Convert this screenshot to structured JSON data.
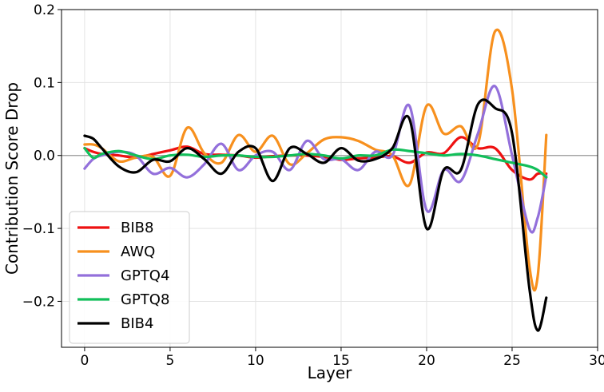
{
  "chart_data": {
    "type": "line",
    "xlabel": "Layer",
    "ylabel": "Contribution Score Drop",
    "xlim": [
      -1.35,
      30
    ],
    "ylim": [
      -0.263,
      0.2
    ],
    "xticks": [
      0,
      5,
      10,
      15,
      20,
      25,
      30
    ],
    "yticks": [
      -0.2,
      -0.1,
      0.0,
      0.1,
      0.2
    ],
    "ytick_labels": [
      "−0.2",
      "−0.1",
      "0.0",
      "0.1",
      "0.2"
    ],
    "grid": true,
    "zero_line": true,
    "legend_position": "lower-left",
    "series": [
      {
        "name": "BIB8",
        "color": "#ee1111",
        "points": [
          [
            0,
            0.01
          ],
          [
            0.5,
            0.005
          ],
          [
            1,
            0.002
          ],
          [
            2,
            0.0
          ],
          [
            3,
            -0.003
          ],
          [
            4,
            0.002
          ],
          [
            5,
            0.007
          ],
          [
            6,
            0.012
          ],
          [
            7,
            0.002
          ],
          [
            8,
            0.001
          ],
          [
            9,
            0.0
          ],
          [
            10,
            -0.003
          ],
          [
            11,
            -0.001
          ],
          [
            12,
            0.0
          ],
          [
            13,
            0.0
          ],
          [
            14,
            -0.002
          ],
          [
            15,
            -0.006
          ],
          [
            16,
            -0.004
          ],
          [
            17,
            -0.003
          ],
          [
            18,
            -0.001
          ],
          [
            19,
            -0.01
          ],
          [
            20,
            0.004
          ],
          [
            21,
            0.003
          ],
          [
            22,
            0.025
          ],
          [
            23,
            0.01
          ],
          [
            24,
            0.01
          ],
          [
            25,
            -0.02
          ],
          [
            26,
            -0.033
          ],
          [
            26.5,
            -0.025
          ],
          [
            27,
            -0.025
          ]
        ]
      },
      {
        "name": "AWQ",
        "color": "#f7901e",
        "points": [
          [
            0,
            0.015
          ],
          [
            0.5,
            0.015
          ],
          [
            1,
            0.01
          ],
          [
            2,
            -0.008
          ],
          [
            3,
            -0.003
          ],
          [
            4,
            -0.002
          ],
          [
            5,
            -0.028
          ],
          [
            6,
            0.038
          ],
          [
            7,
            0.003
          ],
          [
            8,
            -0.01
          ],
          [
            9,
            0.028
          ],
          [
            10,
            0.005
          ],
          [
            11,
            0.027
          ],
          [
            12,
            -0.012
          ],
          [
            13,
            0.003
          ],
          [
            14,
            0.022
          ],
          [
            15,
            0.025
          ],
          [
            16,
            0.02
          ],
          [
            17,
            0.008
          ],
          [
            18,
            0.0
          ],
          [
            19,
            -0.04
          ],
          [
            20,
            0.068
          ],
          [
            21,
            0.03
          ],
          [
            22,
            0.04
          ],
          [
            23,
            0.015
          ],
          [
            24,
            0.17
          ],
          [
            25,
            0.09
          ],
          [
            26,
            -0.15
          ],
          [
            26.5,
            -0.165
          ],
          [
            27,
            0.028
          ]
        ]
      },
      {
        "name": "GPTQ4",
        "color": "#9370db",
        "points": [
          [
            0,
            -0.018
          ],
          [
            0.5,
            -0.005
          ],
          [
            1,
            0.0
          ],
          [
            2,
            0.005
          ],
          [
            3,
            0.0
          ],
          [
            4,
            -0.025
          ],
          [
            5,
            -0.017
          ],
          [
            6,
            -0.03
          ],
          [
            7,
            -0.012
          ],
          [
            8,
            0.016
          ],
          [
            9,
            -0.02
          ],
          [
            10,
            0.0
          ],
          [
            11,
            0.005
          ],
          [
            12,
            -0.02
          ],
          [
            13,
            0.02
          ],
          [
            14,
            -0.005
          ],
          [
            15,
            -0.005
          ],
          [
            16,
            -0.02
          ],
          [
            17,
            0.005
          ],
          [
            18,
            0.0
          ],
          [
            19,
            0.068
          ],
          [
            20,
            -0.075
          ],
          [
            21,
            -0.02
          ],
          [
            22,
            -0.035
          ],
          [
            23,
            0.03
          ],
          [
            24,
            0.095
          ],
          [
            25,
            0.0
          ],
          [
            26,
            -0.1
          ],
          [
            26.5,
            -0.085
          ],
          [
            27,
            -0.028
          ]
        ]
      },
      {
        "name": "GPTQ8",
        "color": "#12bf5a",
        "points": [
          [
            0,
            0.01
          ],
          [
            0.5,
            -0.003
          ],
          [
            1,
            0.002
          ],
          [
            2,
            0.006
          ],
          [
            3,
            0.0
          ],
          [
            4,
            -0.005
          ],
          [
            5,
            0.0
          ],
          [
            6,
            0.001
          ],
          [
            7,
            -0.002
          ],
          [
            8,
            0.0
          ],
          [
            9,
            0.0
          ],
          [
            10,
            -0.002
          ],
          [
            11,
            -0.002
          ],
          [
            12,
            0.0
          ],
          [
            13,
            0.002
          ],
          [
            14,
            0.0
          ],
          [
            15,
            -0.004
          ],
          [
            16,
            0.0
          ],
          [
            17,
            0.0
          ],
          [
            18,
            0.008
          ],
          [
            19,
            0.006
          ],
          [
            20,
            0.003
          ],
          [
            21,
            0.0
          ],
          [
            22,
            0.002
          ],
          [
            23,
            0.0
          ],
          [
            24,
            -0.005
          ],
          [
            25,
            -0.01
          ],
          [
            26,
            -0.015
          ],
          [
            26.5,
            -0.02
          ],
          [
            27,
            -0.03
          ]
        ]
      },
      {
        "name": "BIB4",
        "color": "#000000",
        "points": [
          [
            0,
            0.027
          ],
          [
            0.5,
            0.023
          ],
          [
            1,
            0.01
          ],
          [
            2,
            -0.015
          ],
          [
            3,
            -0.023
          ],
          [
            4,
            -0.006
          ],
          [
            5,
            -0.008
          ],
          [
            6,
            0.01
          ],
          [
            7,
            -0.005
          ],
          [
            8,
            -0.025
          ],
          [
            9,
            0.005
          ],
          [
            10,
            0.01
          ],
          [
            11,
            -0.035
          ],
          [
            12,
            0.01
          ],
          [
            13,
            0.002
          ],
          [
            14,
            -0.01
          ],
          [
            15,
            0.01
          ],
          [
            16,
            -0.007
          ],
          [
            17,
            -0.005
          ],
          [
            18,
            0.01
          ],
          [
            19,
            0.05
          ],
          [
            20,
            -0.1
          ],
          [
            21,
            -0.02
          ],
          [
            22,
            -0.02
          ],
          [
            23,
            0.07
          ],
          [
            24,
            0.065
          ],
          [
            25,
            0.03
          ],
          [
            26,
            -0.18
          ],
          [
            26.5,
            -0.24
          ],
          [
            27,
            -0.195
          ]
        ]
      }
    ]
  }
}
